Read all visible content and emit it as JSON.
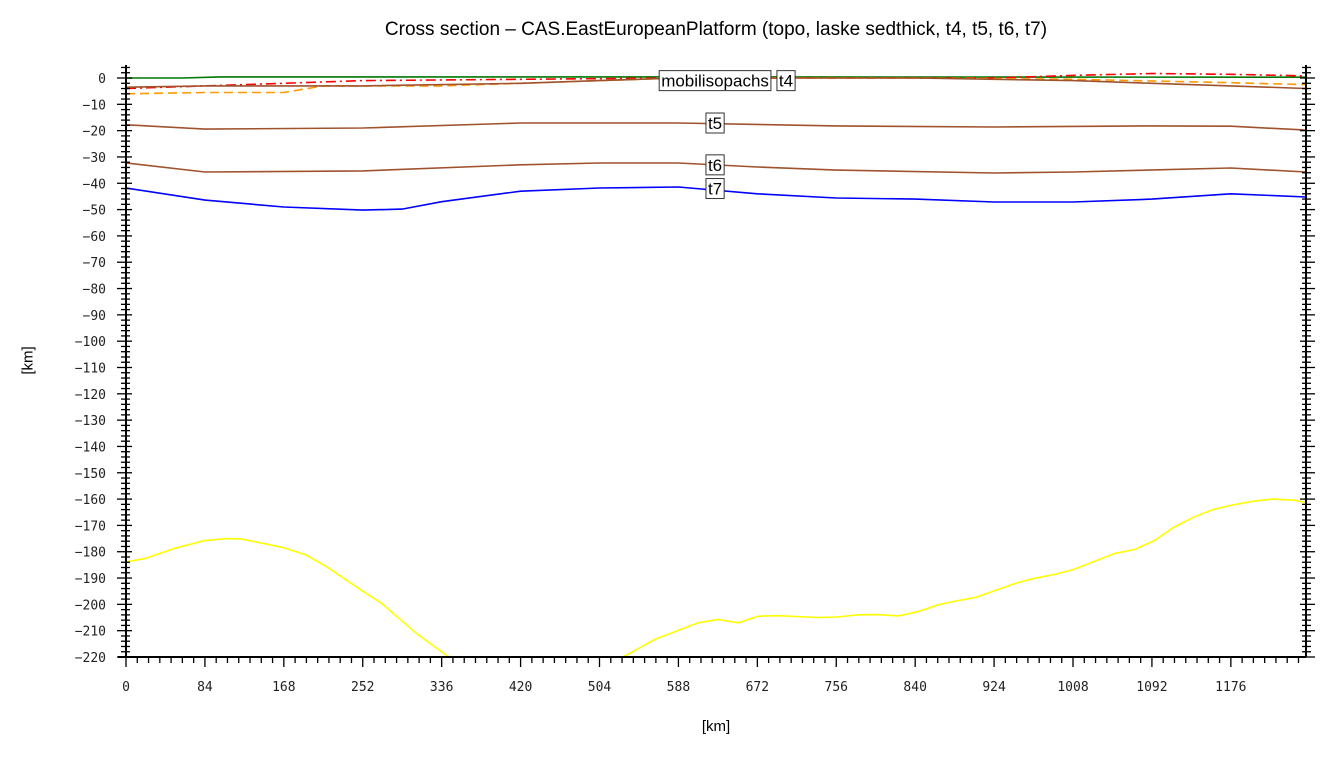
{
  "chart_data": {
    "type": "line",
    "title": "Cross section – CAS.EastEuropeanPlatform (topo, laske sedthick, t4, t5, t6, t7)",
    "xlabel": "[km]",
    "ylabel": "[km]",
    "xlim": [
      0,
      1256
    ],
    "ylim": [
      -220,
      5
    ],
    "xticks": [
      0,
      84,
      168,
      252,
      336,
      420,
      504,
      588,
      672,
      756,
      840,
      924,
      1008,
      1092,
      1176
    ],
    "yticks": [
      0,
      -10,
      -20,
      -30,
      -40,
      -50,
      -60,
      -70,
      -80,
      -90,
      -100,
      -110,
      -120,
      -130,
      -140,
      -150,
      -160,
      -170,
      -180,
      -190,
      -200,
      -210,
      -220
    ],
    "grid": false,
    "label_x": 627,
    "series": [
      {
        "color": "#007700",
        "style": "solid",
        "points": [
          [
            0,
            0
          ],
          [
            60,
            0
          ],
          [
            100,
            0.4
          ],
          [
            600,
            0.4
          ],
          [
            1256,
            0.3
          ]
        ]
      },
      {
        "color": "#ff0000",
        "style": "dashdot",
        "points": [
          [
            0,
            -4
          ],
          [
            84,
            -3
          ],
          [
            168,
            -2
          ],
          [
            252,
            -1
          ],
          [
            420,
            -0.5
          ],
          [
            588,
            0
          ],
          [
            924,
            0
          ],
          [
            1008,
            1
          ],
          [
            1092,
            1.7
          ],
          [
            1176,
            1.4
          ],
          [
            1256,
            0.8
          ]
        ]
      },
      {
        "name": "mobilisopachs",
        "color": "#ff9900",
        "style": "dashed",
        "label_y": -1,
        "points": [
          [
            0,
            -6
          ],
          [
            84,
            -5.5
          ],
          [
            168,
            -5.5
          ],
          [
            210,
            -3
          ],
          [
            336,
            -3
          ],
          [
            420,
            -2
          ],
          [
            504,
            -1
          ],
          [
            588,
            0
          ],
          [
            840,
            0
          ],
          [
            1008,
            -0.5
          ],
          [
            1176,
            -1.8
          ],
          [
            1256,
            -2.5
          ]
        ]
      },
      {
        "name": "t4",
        "color": "#a0522d",
        "style": "solid",
        "label_y": -1,
        "points": [
          [
            0,
            -3.5
          ],
          [
            84,
            -3
          ],
          [
            252,
            -3
          ],
          [
            420,
            -2
          ],
          [
            504,
            -1
          ],
          [
            588,
            0
          ],
          [
            840,
            0
          ],
          [
            1008,
            -1
          ],
          [
            1092,
            -2
          ],
          [
            1176,
            -3
          ],
          [
            1256,
            -4
          ]
        ]
      },
      {
        "name": "t5",
        "color": "#a0522d",
        "style": "solid",
        "label_y": -17.1,
        "points": [
          [
            0,
            -17.8
          ],
          [
            84,
            -19.4
          ],
          [
            252,
            -19
          ],
          [
            420,
            -17.1
          ],
          [
            588,
            -17.1
          ],
          [
            756,
            -18.2
          ],
          [
            924,
            -18.6
          ],
          [
            1092,
            -18.2
          ],
          [
            1176,
            -18.3
          ],
          [
            1256,
            -19.8
          ]
        ]
      },
      {
        "name": "t6",
        "color": "#a0522d",
        "style": "solid",
        "label_y": -33,
        "points": [
          [
            0,
            -32.3
          ],
          [
            84,
            -35.7
          ],
          [
            252,
            -35.3
          ],
          [
            420,
            -33
          ],
          [
            504,
            -32.3
          ],
          [
            588,
            -32.3
          ],
          [
            672,
            -33.8
          ],
          [
            756,
            -35
          ],
          [
            924,
            -36.1
          ],
          [
            1008,
            -35.7
          ],
          [
            1176,
            -34.2
          ],
          [
            1256,
            -35.7
          ]
        ]
      },
      {
        "name": "t7",
        "color": "#0000ff",
        "style": "solid",
        "label_y": -42,
        "points": [
          [
            0,
            -41.8
          ],
          [
            84,
            -46.4
          ],
          [
            168,
            -49
          ],
          [
            252,
            -50.2
          ],
          [
            294,
            -49.8
          ],
          [
            336,
            -47
          ],
          [
            420,
            -43
          ],
          [
            504,
            -41.8
          ],
          [
            588,
            -41.4
          ],
          [
            672,
            -44
          ],
          [
            756,
            -45.6
          ],
          [
            840,
            -46
          ],
          [
            924,
            -47.1
          ],
          [
            1008,
            -47.1
          ],
          [
            1092,
            -46
          ],
          [
            1176,
            -44
          ],
          [
            1256,
            -45.2
          ]
        ]
      },
      {
        "color": "#ffff00",
        "style": "solid",
        "segments": [
          [
            [
              0,
              -183.9
            ],
            [
              21,
              -182.5
            ],
            [
              52,
              -178.7
            ],
            [
              83,
              -175.8
            ],
            [
              107,
              -175
            ],
            [
              123.5,
              -175.2
            ],
            [
              166,
              -178.3
            ],
            [
              191.5,
              -181.2
            ],
            [
              213.5,
              -185.7
            ],
            [
              250,
              -194.5
            ],
            [
              272,
              -199.6
            ],
            [
              309,
              -211
            ],
            [
              343.6,
              -220
            ]
          ],
          [
            [
              529,
              -220
            ],
            [
              563,
              -213.3
            ],
            [
              609,
              -207
            ],
            [
              630,
              -205.7
            ],
            [
              652,
              -207
            ],
            [
              673,
              -204.5
            ],
            [
              695,
              -204.3
            ],
            [
              736,
              -205
            ],
            [
              757,
              -204.8
            ],
            [
              778,
              -204
            ],
            [
              799,
              -203.9
            ],
            [
              822,
              -204.4
            ],
            [
              843,
              -202.8
            ],
            [
              863,
              -200.3
            ],
            [
              884,
              -198.7
            ],
            [
              905,
              -197.3
            ],
            [
              947,
              -192
            ],
            [
              967,
              -190.1
            ],
            [
              990,
              -188.5
            ],
            [
              1009,
              -186.7
            ],
            [
              1053,
              -180.6
            ],
            [
              1074,
              -179.1
            ],
            [
              1094,
              -175.9
            ],
            [
              1115,
              -170.8
            ],
            [
              1136,
              -166.9
            ],
            [
              1156,
              -164.1
            ],
            [
              1177,
              -162.3
            ],
            [
              1200,
              -160.8
            ],
            [
              1221,
              -160
            ],
            [
              1242,
              -160.4
            ],
            [
              1256,
              -161.3
            ]
          ]
        ]
      }
    ]
  }
}
